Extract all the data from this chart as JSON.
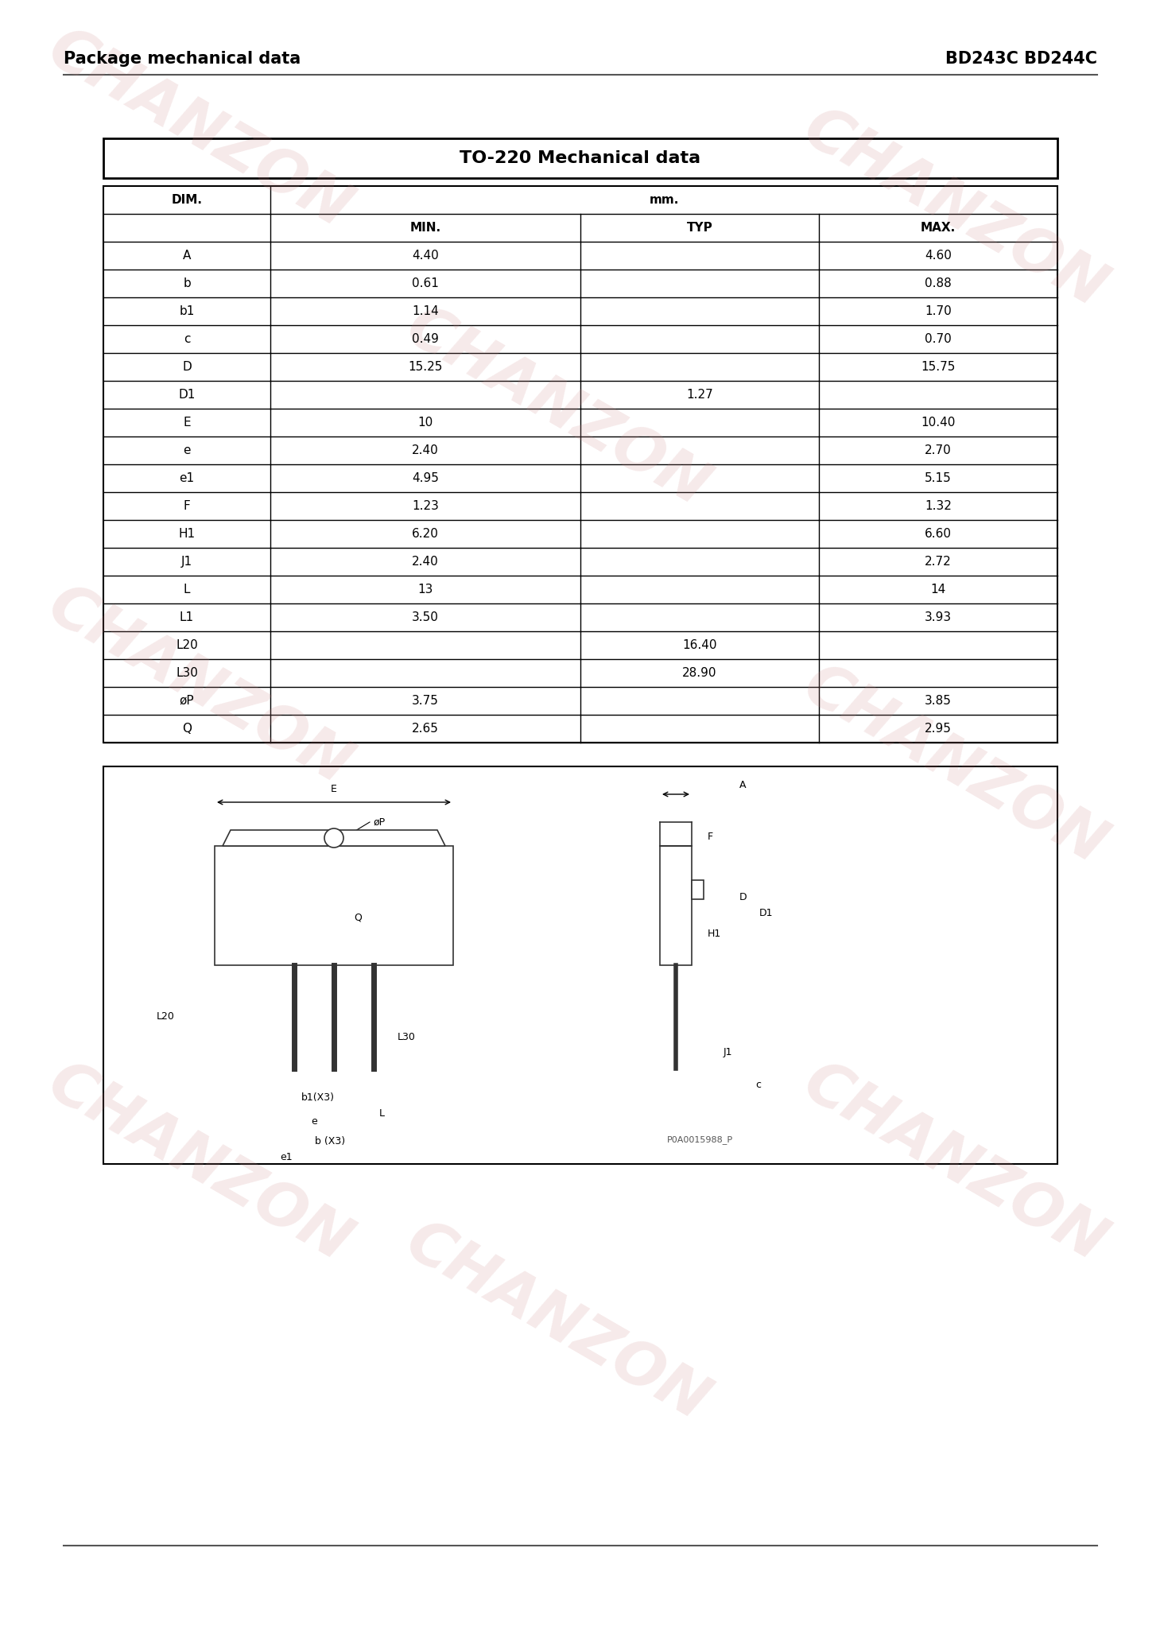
{
  "title_left": "Package mechanical data",
  "title_right": "BD243C BD244C",
  "table_title": "TO-220 Mechanical data",
  "header_row": [
    "DIM.",
    "mm.",
    "",
    ""
  ],
  "sub_header": [
    "",
    "MIN.",
    "TYP",
    "MAX."
  ],
  "rows": [
    [
      "A",
      "4.40",
      "",
      "4.60"
    ],
    [
      "b",
      "0.61",
      "",
      "0.88"
    ],
    [
      "b1",
      "1.14",
      "",
      "1.70"
    ],
    [
      "c",
      "0.49",
      "",
      "0.70"
    ],
    [
      "D",
      "15.25",
      "",
      "15.75"
    ],
    [
      "D1",
      "",
      "1.27",
      ""
    ],
    [
      "E",
      "10",
      "",
      "10.40"
    ],
    [
      "e",
      "2.40",
      "",
      "2.70"
    ],
    [
      "e1",
      "4.95",
      "",
      "5.15"
    ],
    [
      "F",
      "1.23",
      "",
      "1.32"
    ],
    [
      "H1",
      "6.20",
      "",
      "6.60"
    ],
    [
      "J1",
      "2.40",
      "",
      "2.72"
    ],
    [
      "L",
      "13",
      "",
      "14"
    ],
    [
      "L1",
      "3.50",
      "",
      "3.93"
    ],
    [
      "L20",
      "",
      "16.40",
      ""
    ],
    [
      "L30",
      "",
      "28.90",
      ""
    ],
    [
      "øP",
      "3.75",
      "",
      "3.85"
    ],
    [
      "Q",
      "2.65",
      "",
      "2.95"
    ]
  ],
  "bg_color": "#ffffff",
  "table_border_color": "#000000",
  "header_bg": "#f0f0f0",
  "watermark_color": "#e8c0c0",
  "watermark_text": "CHANZON"
}
